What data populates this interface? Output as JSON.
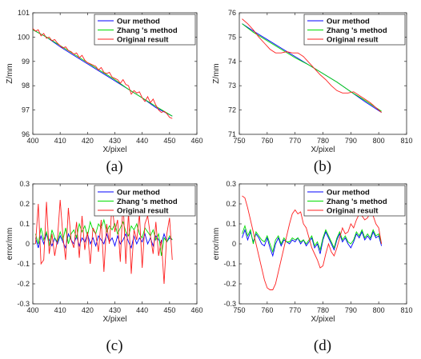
{
  "colors": {
    "ours": "#0000ff",
    "zhang": "#00dd00",
    "original": "#ff2020"
  },
  "chart_data": [
    {
      "type": "line",
      "caption": "(a)",
      "xlabel": "X/pixel",
      "ylabel": "Z/mm",
      "xlim": [
        400,
        460
      ],
      "ylim": [
        96,
        101
      ],
      "xticks": [
        400,
        410,
        420,
        430,
        440,
        450,
        460
      ],
      "yticks": [
        96,
        97,
        98,
        99,
        100,
        101
      ],
      "legend": "top-right",
      "series": [
        {
          "name": "Our method",
          "color_key": "ours",
          "x": [
            400,
            405,
            410,
            415,
            420,
            425,
            430,
            435,
            440,
            445,
            451
          ],
          "y": [
            100.3,
            100.0,
            99.6,
            99.25,
            98.9,
            98.55,
            98.2,
            97.85,
            97.5,
            97.1,
            96.75
          ]
        },
        {
          "name": "Zhang 's method",
          "color_key": "zhang",
          "x": [
            400,
            405,
            410,
            415,
            420,
            425,
            430,
            435,
            440,
            445,
            451
          ],
          "y": [
            100.3,
            100.0,
            99.65,
            99.3,
            98.95,
            98.6,
            98.25,
            97.85,
            97.5,
            97.15,
            96.75
          ]
        },
        {
          "name": "Original result",
          "color_key": "original",
          "x": [
            400,
            401,
            402,
            403,
            404,
            405,
            406,
            407,
            408,
            409,
            410,
            411,
            412,
            413,
            414,
            415,
            416,
            417,
            418,
            419,
            420,
            421,
            422,
            423,
            424,
            425,
            426,
            427,
            428,
            429,
            430,
            431,
            432,
            433,
            434,
            435,
            436,
            437,
            438,
            439,
            440,
            441,
            442,
            443,
            444,
            445,
            446,
            447,
            448,
            449,
            450,
            451
          ],
          "y": [
            100.35,
            100.25,
            100.3,
            100.05,
            100.15,
            99.95,
            100.0,
            99.85,
            99.9,
            99.75,
            99.65,
            99.55,
            99.6,
            99.45,
            99.4,
            99.3,
            99.35,
            99.15,
            99.25,
            99.05,
            98.95,
            98.9,
            98.85,
            98.8,
            98.65,
            98.75,
            98.55,
            98.5,
            98.55,
            98.35,
            98.3,
            98.25,
            98.1,
            98.25,
            98.05,
            98.0,
            97.65,
            97.8,
            97.7,
            97.75,
            97.5,
            97.35,
            97.55,
            97.3,
            97.45,
            97.2,
            97.0,
            96.9,
            96.95,
            96.85,
            96.7,
            96.65
          ]
        }
      ]
    },
    {
      "type": "line",
      "caption": "(b)",
      "xlabel": "X/pixel",
      "ylabel": "Z/mm",
      "xlim": [
        750,
        810
      ],
      "ylim": [
        71,
        76
      ],
      "xticks": [
        750,
        760,
        770,
        780,
        790,
        800,
        810
      ],
      "yticks": [
        71,
        72,
        73,
        74,
        75,
        76
      ],
      "legend": "top-right",
      "series": [
        {
          "name": "Our method",
          "color_key": "ours",
          "x": [
            751,
            755,
            760,
            765,
            770,
            775,
            780,
            785,
            790,
            795,
            801
          ],
          "y": [
            75.55,
            75.25,
            74.9,
            74.55,
            74.2,
            73.85,
            73.5,
            73.15,
            72.75,
            72.35,
            71.9
          ]
        },
        {
          "name": "Zhang 's method",
          "color_key": "zhang",
          "x": [
            751,
            755,
            760,
            765,
            770,
            775,
            780,
            785,
            790,
            795,
            801
          ],
          "y": [
            75.55,
            75.2,
            74.85,
            74.5,
            74.15,
            73.85,
            73.5,
            73.15,
            72.75,
            72.4,
            71.95
          ]
        },
        {
          "name": "Original result",
          "color_key": "original",
          "x": [
            751,
            753,
            755,
            757,
            759,
            761,
            763,
            765,
            767,
            769,
            771,
            773,
            775,
            777,
            779,
            781,
            783,
            785,
            787,
            789,
            791,
            793,
            795,
            797,
            799,
            801
          ],
          "y": [
            75.75,
            75.55,
            75.3,
            75.0,
            74.75,
            74.5,
            74.35,
            74.35,
            74.4,
            74.35,
            74.35,
            74.2,
            73.95,
            73.7,
            73.45,
            73.25,
            73.0,
            72.8,
            72.7,
            72.7,
            72.75,
            72.6,
            72.45,
            72.3,
            72.1,
            71.9
          ]
        }
      ]
    },
    {
      "type": "line",
      "caption": "(c)",
      "xlabel": "X/pixel",
      "ylabel": "error/mm",
      "xlim": [
        400,
        460
      ],
      "ylim": [
        -0.3,
        0.3
      ],
      "xticks": [
        400,
        410,
        420,
        430,
        440,
        450,
        460
      ],
      "yticks": [
        -0.3,
        -0.2,
        -0.1,
        0,
        0.1,
        0.2,
        0.3
      ],
      "legend": "top-right",
      "series": [
        {
          "name": "Our method",
          "color_key": "ours",
          "x": [
            401,
            402,
            403,
            404,
            405,
            406,
            407,
            408,
            409,
            410,
            411,
            412,
            413,
            414,
            415,
            416,
            417,
            418,
            419,
            420,
            421,
            422,
            423,
            424,
            425,
            426,
            427,
            428,
            429,
            430,
            431,
            432,
            433,
            434,
            435,
            436,
            437,
            438,
            439,
            440,
            441,
            442,
            443,
            444,
            445,
            446,
            447,
            448,
            449,
            450,
            451
          ],
          "y": [
            0.03,
            -0.02,
            0.04,
            0.0,
            0.05,
            0.02,
            -0.01,
            0.03,
            0.0,
            0.04,
            0.01,
            -0.02,
            0.05,
            0.02,
            0.0,
            0.04,
            -0.01,
            0.03,
            0.01,
            0.05,
            0.0,
            0.03,
            -0.01,
            0.04,
            0.02,
            0.0,
            0.05,
            0.01,
            0.03,
            -0.01,
            0.04,
            0.0,
            0.02,
            0.05,
            0.01,
            -0.02,
            0.04,
            0.0,
            0.03,
            0.01,
            0.05,
            0.0,
            0.03,
            -0.01,
            0.04,
            0.02,
            0.0,
            0.05,
            0.01,
            0.03,
            0.02
          ]
        },
        {
          "name": "Zhang 's method",
          "color_key": "zhang",
          "x": [
            401,
            402,
            403,
            404,
            405,
            406,
            407,
            408,
            409,
            410,
            411,
            412,
            413,
            414,
            415,
            416,
            417,
            418,
            419,
            420,
            421,
            422,
            423,
            424,
            425,
            426,
            427,
            428,
            429,
            430,
            431,
            432,
            433,
            434,
            435,
            436,
            437,
            438,
            439,
            440,
            441,
            442,
            443,
            444,
            445,
            446,
            447,
            448,
            449,
            450,
            451
          ],
          "y": [
            0.05,
            0.0,
            0.08,
            0.02,
            0.06,
            -0.01,
            0.07,
            0.03,
            0.01,
            0.06,
            0.02,
            0.08,
            0.0,
            0.05,
            0.07,
            0.03,
            0.1,
            0.06,
            0.09,
            0.04,
            0.11,
            0.07,
            0.05,
            0.1,
            0.08,
            0.12,
            0.06,
            0.09,
            0.07,
            0.1,
            0.05,
            0.08,
            0.11,
            0.06,
            0.04,
            0.09,
            0.07,
            0.1,
            0.05,
            0.03,
            0.08,
            0.06,
            0.04,
            0.07,
            0.02,
            0.05,
            -0.06,
            0.03,
            0.01,
            0.04,
            0.02
          ]
        },
        {
          "name": "Original result",
          "color_key": "original",
          "x": [
            401,
            402,
            403,
            404,
            405,
            406,
            407,
            408,
            409,
            410,
            411,
            412,
            413,
            414,
            415,
            416,
            417,
            418,
            419,
            420,
            421,
            422,
            423,
            424,
            425,
            426,
            427,
            428,
            429,
            430,
            431,
            432,
            433,
            434,
            435,
            436,
            437,
            438,
            439,
            440,
            441,
            442,
            443,
            444,
            445,
            446,
            447,
            448,
            449,
            450,
            451
          ],
          "y": [
            0.0,
            0.2,
            -0.1,
            -0.08,
            0.21,
            -0.05,
            0.05,
            -0.06,
            0.02,
            0.22,
            0.04,
            -0.08,
            0.18,
            0.02,
            -0.02,
            0.11,
            -0.07,
            0.14,
            -0.03,
            0.06,
            -0.1,
            0.08,
            0.05,
            -0.04,
            0.12,
            -0.14,
            0.1,
            0.0,
            0.2,
            0.06,
            0.12,
            -0.09,
            0.22,
            -0.1,
            0.16,
            -0.15,
            0.07,
            0.02,
            0.15,
            -0.12,
            0.1,
            0.14,
            0.04,
            -0.05,
            0.11,
            -0.06,
            0.02,
            -0.2,
            0.05,
            0.13,
            -0.08
          ]
        }
      ]
    },
    {
      "type": "line",
      "caption": "(d)",
      "xlabel": "X/pixel",
      "ylabel": "error/mm",
      "xlim": [
        750,
        810
      ],
      "ylim": [
        -0.3,
        0.3
      ],
      "xticks": [
        750,
        760,
        770,
        780,
        790,
        800,
        810
      ],
      "yticks": [
        -0.3,
        -0.2,
        -0.1,
        0,
        0.1,
        0.2,
        0.3
      ],
      "legend": "top-right",
      "series": [
        {
          "name": "Our method",
          "color_key": "ours",
          "x": [
            751,
            752,
            753,
            754,
            755,
            756,
            757,
            758,
            759,
            760,
            761,
            762,
            763,
            764,
            765,
            766,
            767,
            768,
            769,
            770,
            771,
            772,
            773,
            774,
            775,
            776,
            777,
            778,
            779,
            780,
            781,
            782,
            783,
            784,
            785,
            786,
            787,
            788,
            789,
            790,
            791,
            792,
            793,
            794,
            795,
            796,
            797,
            798,
            799,
            800,
            801
          ],
          "y": [
            0.03,
            0.07,
            0.02,
            0.06,
            0.01,
            0.05,
            0.03,
            0.0,
            -0.01,
            0.03,
            -0.02,
            -0.06,
            0.0,
            0.03,
            -0.01,
            0.02,
            0.01,
            0.0,
            0.02,
            0.01,
            0.03,
            0.0,
            0.02,
            -0.01,
            0.01,
            0.03,
            -0.02,
            0.0,
            -0.05,
            0.02,
            0.06,
            0.03,
            0.0,
            -0.03,
            0.02,
            0.05,
            0.01,
            0.03,
            0.0,
            -0.02,
            0.01,
            0.05,
            0.03,
            0.06,
            0.02,
            0.04,
            0.02,
            0.06,
            0.03,
            0.04,
            -0.01
          ]
        },
        {
          "name": "Zhang 's method",
          "color_key": "zhang",
          "x": [
            751,
            752,
            753,
            754,
            755,
            756,
            757,
            758,
            759,
            760,
            761,
            762,
            763,
            764,
            765,
            766,
            767,
            768,
            769,
            770,
            771,
            772,
            773,
            774,
            775,
            776,
            777,
            778,
            779,
            780,
            781,
            782,
            783,
            784,
            785,
            786,
            787,
            788,
            789,
            790,
            791,
            792,
            793,
            794,
            795,
            796,
            797,
            798,
            799,
            800,
            801
          ],
          "y": [
            0.05,
            0.09,
            0.04,
            0.07,
            0.0,
            0.06,
            0.04,
            0.02,
            0.01,
            0.04,
            0.0,
            -0.04,
            0.02,
            0.04,
            0.0,
            0.03,
            0.01,
            0.01,
            0.03,
            0.02,
            0.03,
            0.01,
            0.02,
            0.0,
            0.02,
            0.04,
            -0.01,
            0.01,
            -0.03,
            0.03,
            0.07,
            0.04,
            0.01,
            -0.02,
            0.03,
            0.06,
            0.02,
            0.04,
            0.01,
            0.0,
            0.02,
            0.06,
            0.04,
            0.07,
            0.03,
            0.05,
            0.03,
            0.07,
            0.04,
            0.05,
            0.0
          ]
        },
        {
          "name": "Original result",
          "color_key": "original",
          "x": [
            751,
            752,
            753,
            754,
            755,
            756,
            757,
            758,
            759,
            760,
            761,
            762,
            763,
            764,
            765,
            766,
            767,
            768,
            769,
            770,
            771,
            772,
            773,
            774,
            775,
            776,
            777,
            778,
            779,
            780,
            781,
            782,
            783,
            784,
            785,
            786,
            787,
            788,
            789,
            790,
            791,
            792,
            793,
            794,
            795,
            796,
            797,
            798,
            799,
            800,
            801
          ],
          "y": [
            0.24,
            0.23,
            0.18,
            0.12,
            0.06,
            0.0,
            -0.06,
            -0.12,
            -0.18,
            -0.22,
            -0.23,
            -0.23,
            -0.2,
            -0.14,
            -0.08,
            -0.02,
            0.04,
            0.1,
            0.15,
            0.17,
            0.15,
            0.16,
            0.1,
            0.08,
            0.03,
            -0.02,
            -0.05,
            -0.08,
            -0.12,
            -0.11,
            -0.05,
            0.0,
            -0.04,
            -0.06,
            -0.02,
            0.03,
            0.08,
            0.05,
            0.06,
            0.1,
            0.08,
            0.12,
            0.15,
            0.14,
            0.12,
            0.13,
            0.16,
            0.14,
            0.1,
            0.08,
            0.0
          ]
        }
      ]
    }
  ]
}
